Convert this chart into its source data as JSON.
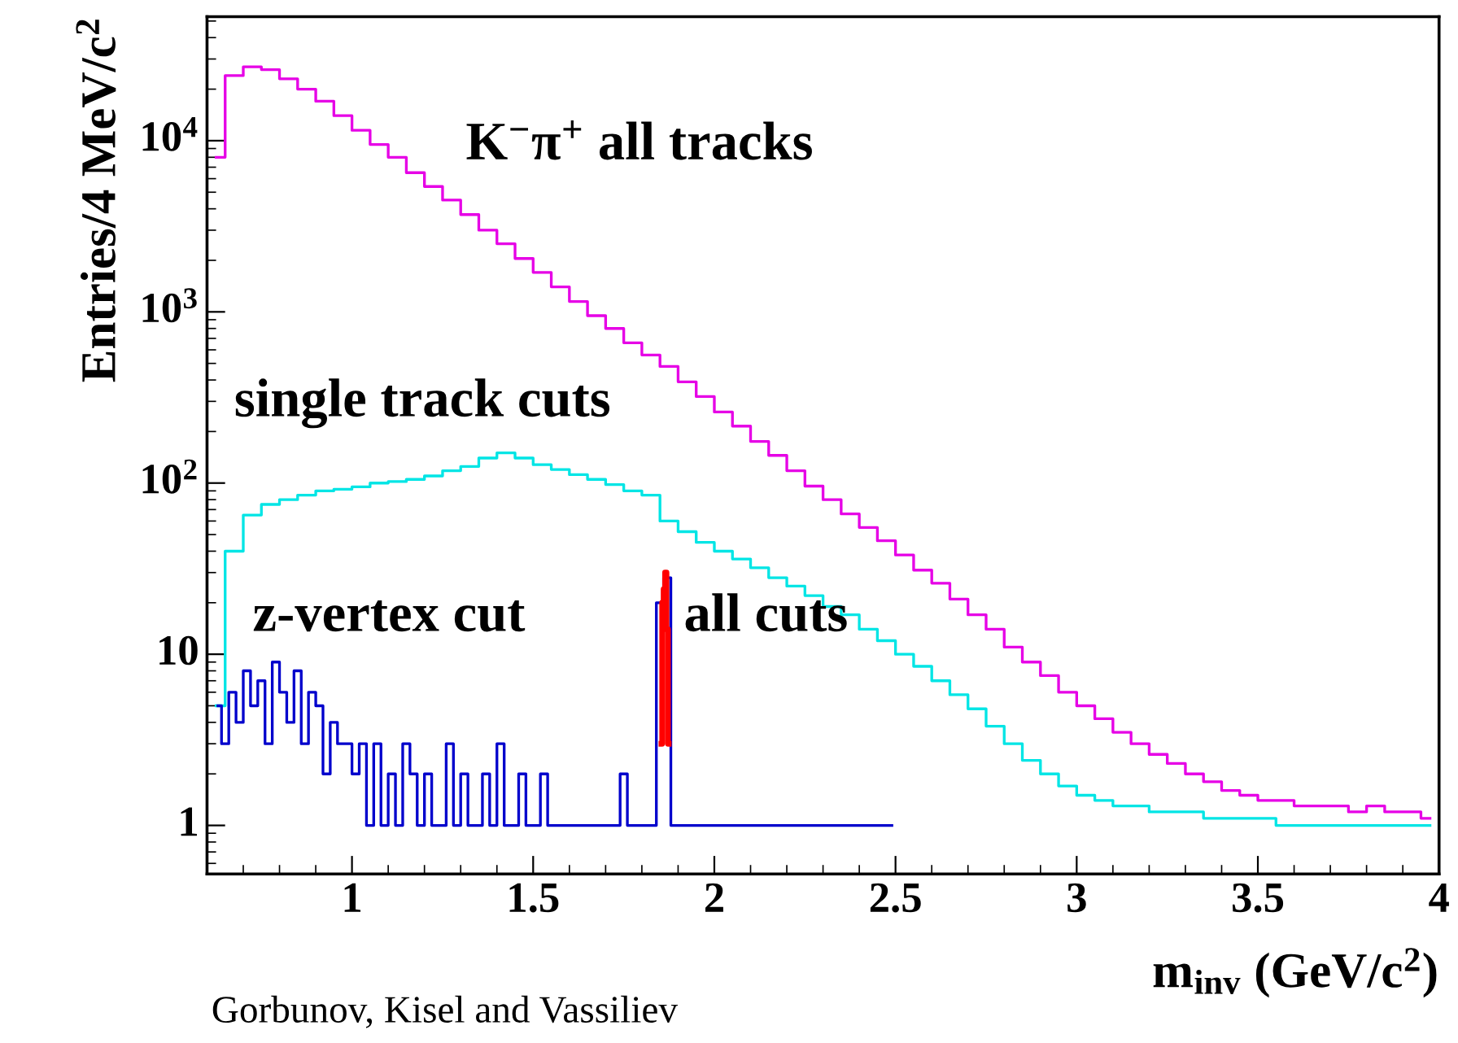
{
  "chart_data": {
    "type": "step",
    "xlabel": "m$_{inv}$ (GeV/c$^{2}$)",
    "ylabel": "Entries/4 MeV/c$^{2}$",
    "log": "y",
    "xlim": [
      0.6,
      4
    ],
    "ylim": [
      0.52,
      53000
    ],
    "xticks": [
      1,
      1.5,
      2,
      2.5,
      3,
      3.5,
      4
    ],
    "yticks": [
      1,
      10,
      {
        "value": 100,
        "label": "10$^{2}$"
      },
      {
        "value": 1000,
        "label": "10$^{3}$"
      },
      {
        "value": 10000,
        "label": "10$^{4}$"
      }
    ],
    "grid": false,
    "series": [
      {
        "color": "#e600e6",
        "x": [
          0.625,
          0.675,
          0.725,
          0.775,
          0.825,
          0.875,
          0.925,
          0.975,
          1.025,
          1.075,
          1.125,
          1.175,
          1.225,
          1.275,
          1.325,
          1.375,
          1.425,
          1.475,
          1.525,
          1.575,
          1.625,
          1.675,
          1.725,
          1.775,
          1.825,
          1.875,
          1.925,
          1.975,
          2.025,
          2.075,
          2.125,
          2.175,
          2.225,
          2.275,
          2.325,
          2.375,
          2.425,
          2.475,
          2.525,
          2.575,
          2.625,
          2.675,
          2.725,
          2.775,
          2.825,
          2.875,
          2.925,
          2.975,
          3.025,
          3.075,
          3.125,
          3.175,
          3.225,
          3.275,
          3.325,
          3.375,
          3.425,
          3.475,
          3.525,
          3.575,
          3.625,
          3.675,
          3.725,
          3.775,
          3.825,
          3.875,
          3.925,
          3.975
        ],
        "values": [
          8000,
          24000,
          27000,
          26000,
          23000,
          20000,
          17000,
          14000,
          11500,
          9500,
          8000,
          6500,
          5400,
          4500,
          3700,
          3000,
          2500,
          2050,
          1700,
          1400,
          1150,
          950,
          800,
          660,
          560,
          480,
          390,
          320,
          260,
          215,
          175,
          145,
          118,
          96,
          80,
          66,
          55,
          46,
          38,
          31,
          26,
          21,
          17,
          14,
          11,
          9,
          7.5,
          6,
          5,
          4.2,
          3.5,
          3,
          2.6,
          2.3,
          2,
          1.8,
          1.6,
          1.5,
          1.4,
          1.4,
          1.3,
          1.3,
          1.3,
          1.2,
          1.3,
          1.2,
          1.2,
          1.1
        ]
      },
      {
        "color": "#00e5e5",
        "x": [
          0.625,
          0.675,
          0.725,
          0.775,
          0.825,
          0.875,
          0.925,
          0.975,
          1.025,
          1.075,
          1.125,
          1.175,
          1.225,
          1.275,
          1.325,
          1.375,
          1.425,
          1.475,
          1.525,
          1.575,
          1.625,
          1.675,
          1.725,
          1.775,
          1.825,
          1.875,
          1.925,
          1.975,
          2.025,
          2.075,
          2.125,
          2.175,
          2.225,
          2.275,
          2.325,
          2.375,
          2.425,
          2.475,
          2.525,
          2.575,
          2.625,
          2.675,
          2.725,
          2.775,
          2.825,
          2.875,
          2.925,
          2.975,
          3.025,
          3.075,
          3.125,
          3.175,
          3.225,
          3.275,
          3.325,
          3.375,
          3.425,
          3.475,
          3.525,
          3.575,
          3.625,
          3.675,
          3.725,
          3.775,
          3.825,
          3.875,
          3.925,
          3.975
        ],
        "values": [
          5,
          40,
          65,
          75,
          80,
          85,
          90,
          92,
          95,
          100,
          102,
          105,
          110,
          118,
          125,
          140,
          150,
          140,
          128,
          120,
          112,
          105,
          98,
          90,
          85,
          60,
          52,
          45,
          40,
          36,
          32,
          28,
          25,
          22,
          19,
          17,
          14,
          12,
          10,
          8.5,
          7,
          5.8,
          4.8,
          3.8,
          3,
          2.4,
          2,
          1.7,
          1.5,
          1.4,
          1.3,
          1.3,
          1.2,
          1.2,
          1.2,
          1.1,
          1.1,
          1.1,
          1.1,
          1,
          1,
          1,
          1,
          1,
          1,
          1,
          1,
          1
        ]
      },
      {
        "color": "#0000cc",
        "x": [
          0.63,
          0.65,
          0.67,
          0.69,
          0.71,
          0.73,
          0.75,
          0.77,
          0.79,
          0.81,
          0.83,
          0.85,
          0.87,
          0.89,
          0.91,
          0.93,
          0.95,
          0.97,
          0.99,
          1.01,
          1.03,
          1.05,
          1.07,
          1.09,
          1.11,
          1.13,
          1.15,
          1.17,
          1.19,
          1.21,
          1.23,
          1.25,
          1.27,
          1.29,
          1.31,
          1.33,
          1.35,
          1.37,
          1.39,
          1.41,
          1.43,
          1.45,
          1.47,
          1.49,
          1.51,
          1.53,
          1.55,
          1.57,
          1.59,
          1.61,
          1.63,
          1.65,
          1.67,
          1.69,
          1.71,
          1.73,
          1.75,
          1.77,
          1.79,
          1.81,
          1.83,
          1.85,
          1.87,
          1.89,
          1.91,
          1.93,
          1.95,
          1.97,
          1.99,
          2.01,
          2.03,
          2.05,
          2.07,
          2.09,
          2.11,
          2.13,
          2.15,
          2.17,
          2.19,
          2.21,
          2.23,
          2.25,
          2.27,
          2.29,
          2.31,
          2.33,
          2.35,
          2.37,
          2.39,
          2.41,
          2.43,
          2.45,
          2.47,
          2.49
        ],
        "values": [
          5,
          3,
          6,
          4,
          8,
          5,
          7,
          3,
          9,
          6,
          4,
          8,
          3,
          6,
          5,
          2,
          4,
          3,
          3,
          2,
          3,
          1,
          3,
          1,
          2,
          1,
          3,
          2,
          1,
          2,
          1,
          1,
          3,
          1,
          2,
          1,
          1,
          2,
          1,
          3,
          1,
          1,
          2,
          1,
          1,
          2,
          1,
          1,
          1,
          1,
          1,
          1,
          1,
          1,
          1,
          1,
          2,
          1,
          1,
          1,
          1,
          20,
          28,
          1,
          1,
          1,
          1,
          1,
          1,
          1,
          1,
          1,
          1,
          1,
          1,
          1,
          1,
          1,
          1,
          1,
          1,
          1,
          1,
          1,
          1,
          1,
          1,
          1,
          1,
          1,
          1,
          1,
          1,
          1
        ]
      },
      {
        "color": "#ff0000",
        "x": [
          1.854,
          1.858,
          1.862,
          1.866,
          1.87,
          1.874
        ],
        "values": [
          3,
          20,
          24,
          30,
          14,
          3
        ]
      }
    ],
    "annotations": [
      "K$^{−}$π$^{+}$ all tracks",
      "single track cuts",
      "z-vertex cut",
      "all cuts",
      "Gorbunov, Kisel and Vassiliev"
    ]
  }
}
